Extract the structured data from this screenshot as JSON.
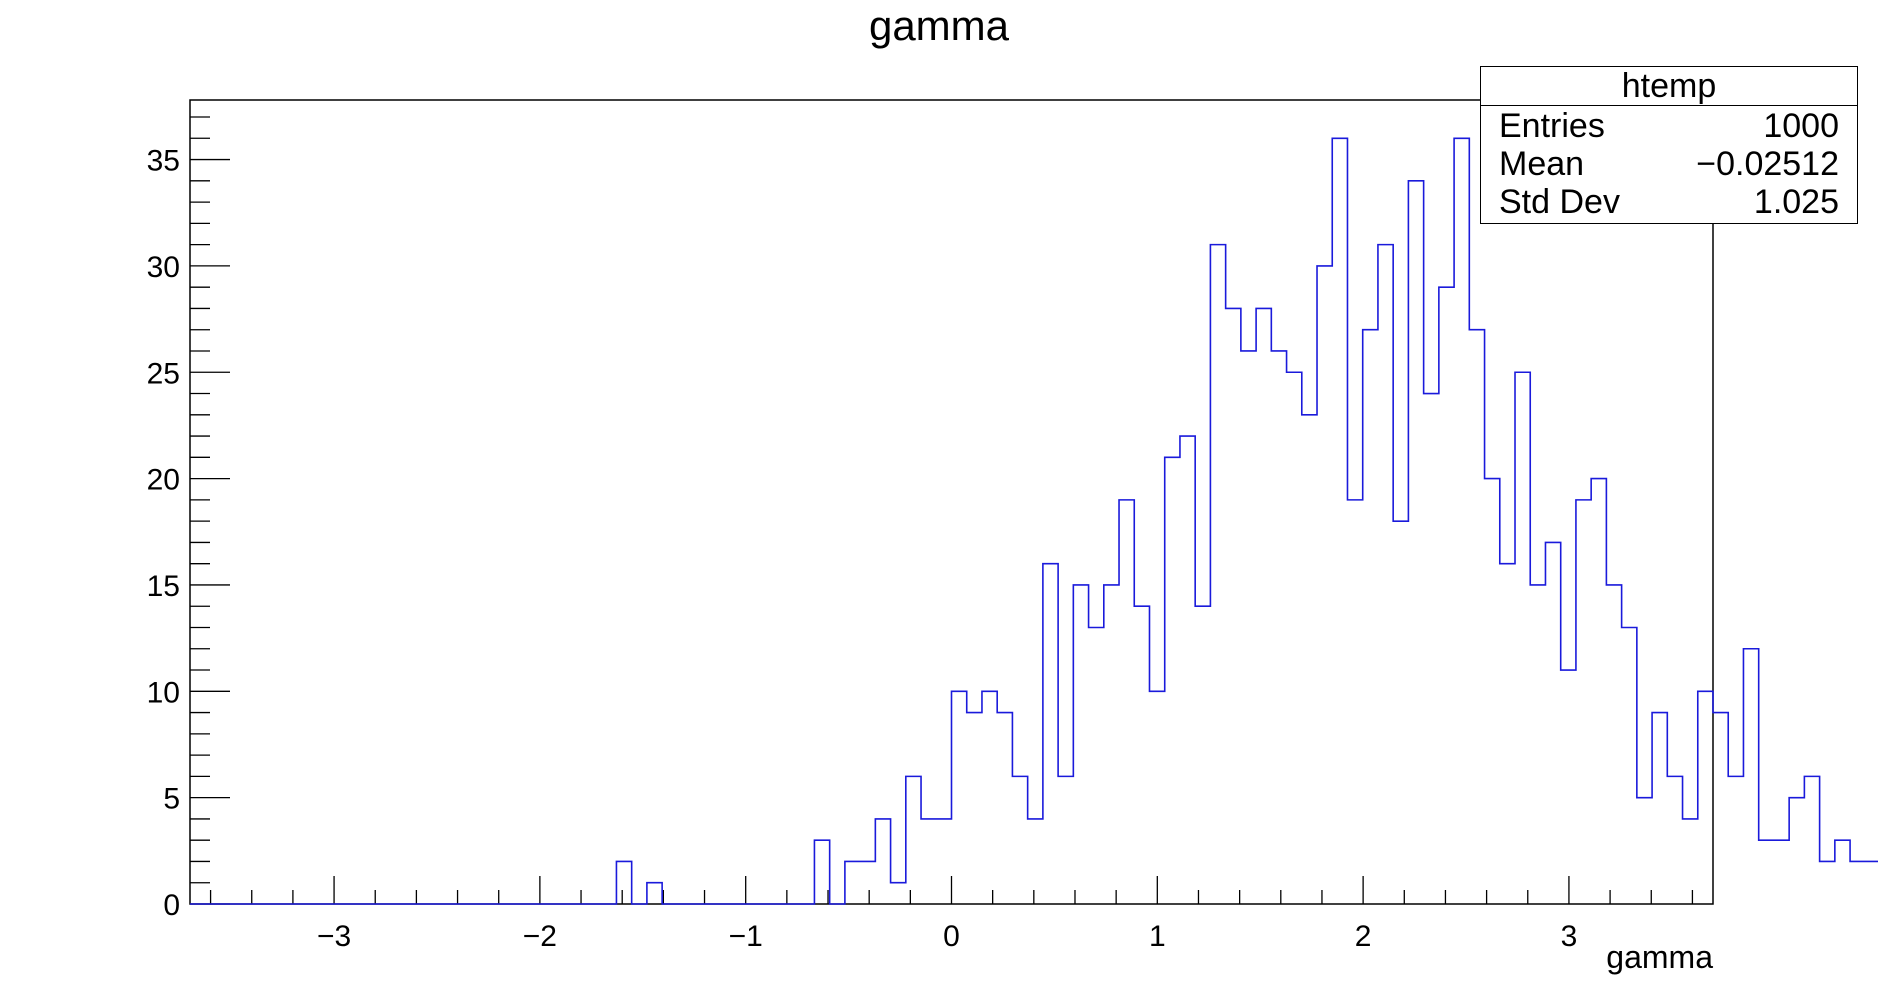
{
  "chart_data": {
    "type": "histogram",
    "title": "gamma",
    "xlabel": "gamma",
    "ylabel": "",
    "xlim": [
      -3.7,
      3.7
    ],
    "ylim": [
      0,
      37.8
    ],
    "x_ticks": [
      -3,
      -2,
      -1,
      0,
      1,
      2,
      3
    ],
    "x_tick_labels": [
      "−3",
      "−2",
      "−1",
      "0",
      "1",
      "2",
      "3"
    ],
    "y_ticks": [
      0,
      5,
      10,
      15,
      20,
      25,
      30,
      35
    ],
    "y_tick_labels": [
      "0",
      "5",
      "10",
      "15",
      "20",
      "25",
      "30",
      "35"
    ],
    "bin_start": -3.7,
    "bin_width": 0.074,
    "counts": [
      0,
      0,
      0,
      0,
      0,
      0,
      0,
      0,
      0,
      0,
      0,
      0,
      0,
      0,
      0,
      0,
      0,
      0,
      0,
      0,
      0,
      0,
      0,
      0,
      0,
      0,
      0,
      0,
      2,
      0,
      1,
      0,
      0,
      0,
      0,
      0,
      0,
      0,
      0,
      0,
      0,
      3,
      0,
      2,
      2,
      4,
      1,
      6,
      4,
      4,
      10,
      9,
      10,
      9,
      6,
      4,
      16,
      6,
      15,
      13,
      15,
      19,
      14,
      10,
      21,
      22,
      14,
      31,
      28,
      26,
      28,
      26,
      25,
      23,
      30,
      36,
      19,
      27,
      31,
      18,
      34,
      24,
      29,
      36,
      27,
      20,
      16,
      25,
      15,
      17,
      11,
      19,
      20,
      15,
      13,
      5,
      9,
      6,
      4,
      10,
      9,
      6,
      12,
      3,
      3,
      5,
      6,
      2,
      3,
      2,
      2,
      1,
      0,
      0,
      0,
      0,
      0,
      0,
      1,
      0
    ],
    "line_color": "#1a1adb",
    "grid": false,
    "legend": "none"
  },
  "stats": {
    "name": "htemp",
    "rows": [
      {
        "label": "Entries",
        "value": "1000"
      },
      {
        "label": "Mean",
        "value": "−0.02512"
      },
      {
        "label": "Std Dev",
        "value": "1.025"
      }
    ]
  }
}
